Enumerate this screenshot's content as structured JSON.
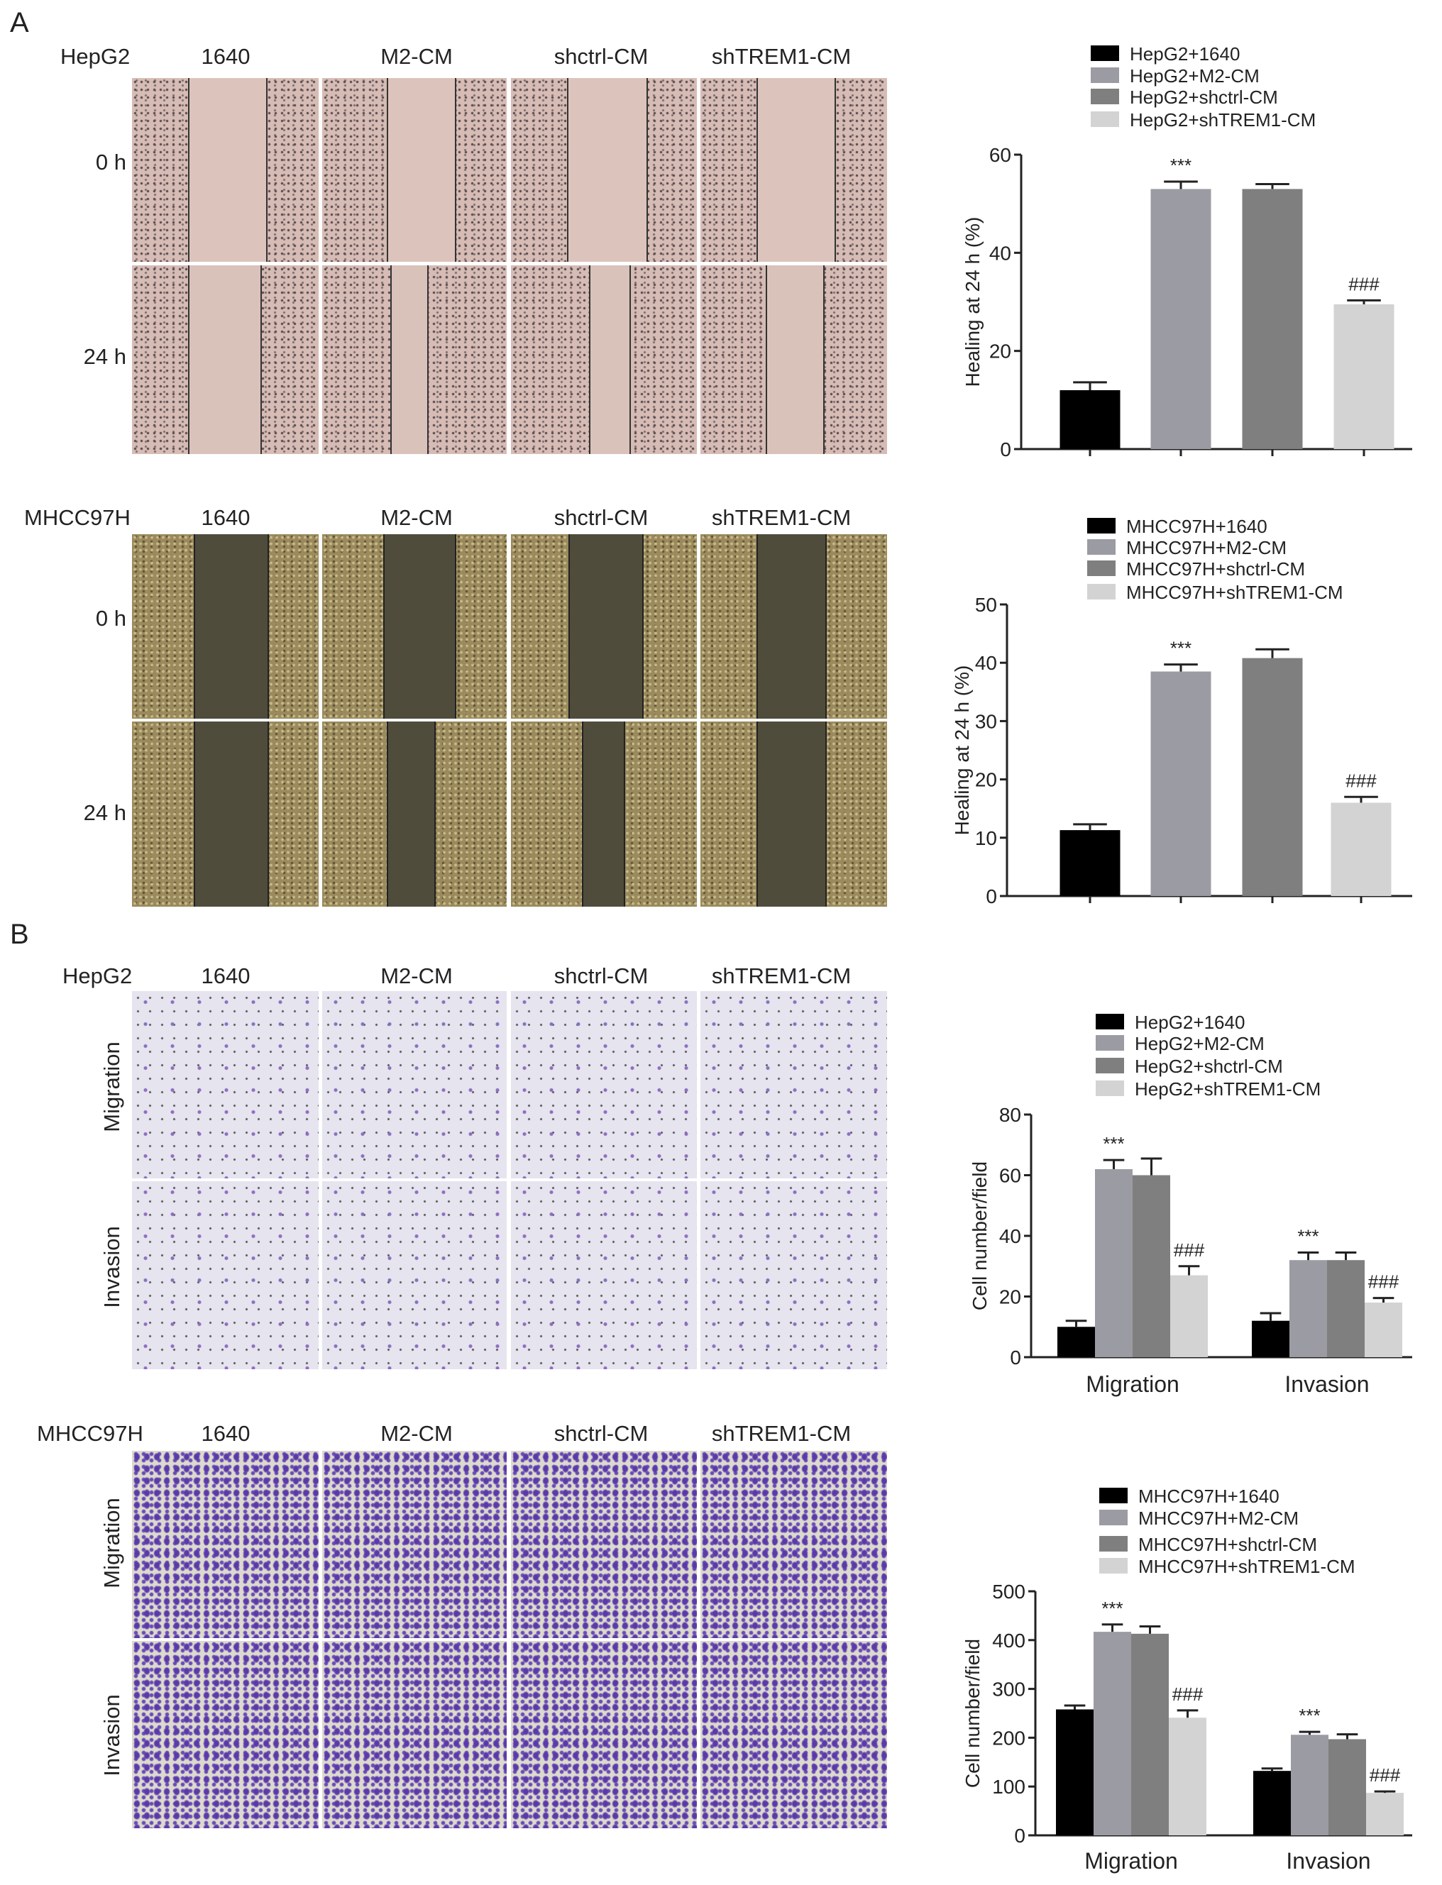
{
  "panel_letters": {
    "a": "A",
    "b": "B"
  },
  "micrographs": [
    {
      "cell_line": "HepG2",
      "columns": [
        "1640",
        "M2-CM",
        "shctrl-CM",
        "shTREM1-CM"
      ],
      "rows": [
        "0 h",
        "24 h"
      ],
      "assay": "wound healing"
    },
    {
      "cell_line": "MHCC97H",
      "columns": [
        "1640",
        "M2-CM",
        "shctrl-CM",
        "shTREM1-CM"
      ],
      "rows": [
        "0 h",
        "24 h"
      ],
      "assay": "wound healing"
    },
    {
      "cell_line": "HepG2",
      "columns": [
        "1640",
        "M2-CM",
        "shctrl-CM",
        "shTREM1-CM"
      ],
      "rows": [
        "Migration",
        "Invasion"
      ],
      "assay": "transwell"
    },
    {
      "cell_line": "MHCC97H",
      "columns": [
        "1640",
        "M2-CM",
        "shctrl-CM",
        "shTREM1-CM"
      ],
      "rows": [
        "Migration",
        "Invasion"
      ],
      "assay": "transwell"
    }
  ],
  "colors": {
    "1640": "#000000",
    "M2-CM": "#9b9ba3",
    "shctrl-CM": "#7f7f7f",
    "shTREM1-CM": "#d3d3d3"
  },
  "chart_data": [
    {
      "type": "bar",
      "ylabel": "Healing at 24 h (%)",
      "ylim": [
        0,
        60
      ],
      "yticks": [
        0,
        20,
        40,
        60
      ],
      "categories": [
        ""
      ],
      "legend_position": "top",
      "series": [
        {
          "name": "HepG2+1640",
          "values": [
            12
          ],
          "errors": [
            1.6
          ],
          "annotation": ""
        },
        {
          "name": "HepG2+M2-CM",
          "values": [
            53
          ],
          "errors": [
            1.5
          ],
          "annotation": "***"
        },
        {
          "name": "HepG2+shctrl-CM",
          "values": [
            53
          ],
          "errors": [
            1.0
          ],
          "annotation": ""
        },
        {
          "name": "HepG2+shTREM1-CM",
          "values": [
            29.5
          ],
          "errors": [
            0.8
          ],
          "annotation": "###"
        }
      ]
    },
    {
      "type": "bar",
      "ylabel": "Healing at 24 h (%)",
      "ylim": [
        0,
        50
      ],
      "yticks": [
        0,
        10,
        20,
        30,
        40,
        50
      ],
      "categories": [
        ""
      ],
      "legend_position": "top",
      "series": [
        {
          "name": "MHCC97H+1640",
          "values": [
            11.3
          ],
          "errors": [
            1.0
          ],
          "annotation": ""
        },
        {
          "name": "MHCC97H+M2-CM",
          "values": [
            38.5
          ],
          "errors": [
            1.2
          ],
          "annotation": "***"
        },
        {
          "name": "MHCC97H+shctrl-CM",
          "values": [
            40.8
          ],
          "errors": [
            1.5
          ],
          "annotation": ""
        },
        {
          "name": "MHCC97H+shTREM1-CM",
          "values": [
            16
          ],
          "errors": [
            1.0
          ],
          "annotation": "###"
        }
      ]
    },
    {
      "type": "bar",
      "ylabel": "Cell number/field",
      "ylim": [
        0,
        80
      ],
      "yticks": [
        0,
        20,
        40,
        60,
        80
      ],
      "categories": [
        "Migration",
        "Invasion"
      ],
      "legend_position": "top",
      "series": [
        {
          "name": "HepG2+1640",
          "values": [
            10,
            12
          ],
          "errors": [
            2,
            2.5
          ],
          "annotation": [
            "",
            ""
          ]
        },
        {
          "name": "HepG2+M2-CM",
          "values": [
            62,
            32
          ],
          "errors": [
            3,
            2.5
          ],
          "annotation": [
            "***",
            "***"
          ]
        },
        {
          "name": "HepG2+shctrl-CM",
          "values": [
            60,
            32
          ],
          "errors": [
            5.5,
            2.5
          ],
          "annotation": [
            "",
            ""
          ]
        },
        {
          "name": "HepG2+shTREM1-CM",
          "values": [
            27,
            18
          ],
          "errors": [
            3,
            1.5
          ],
          "annotation": [
            "###",
            "###"
          ]
        }
      ]
    },
    {
      "type": "bar",
      "ylabel": "Cell number/field",
      "ylim": [
        0,
        500
      ],
      "yticks": [
        0,
        100,
        200,
        300,
        400,
        500
      ],
      "categories": [
        "Migration",
        "Invasion"
      ],
      "legend_position": "top",
      "series": [
        {
          "name": "MHCC97H+1640",
          "values": [
            258,
            132
          ],
          "errors": [
            8,
            5
          ],
          "annotation": [
            "",
            ""
          ]
        },
        {
          "name": "MHCC97H+M2-CM",
          "values": [
            417,
            206
          ],
          "errors": [
            15,
            6
          ],
          "annotation": [
            "***",
            "***"
          ]
        },
        {
          "name": "MHCC97H+shctrl-CM",
          "values": [
            413,
            197
          ],
          "errors": [
            15,
            10
          ],
          "annotation": [
            "",
            ""
          ]
        },
        {
          "name": "MHCC97H+shTREM1-CM",
          "values": [
            241,
            87
          ],
          "errors": [
            15,
            3
          ],
          "annotation": [
            "###",
            "###"
          ]
        }
      ]
    }
  ]
}
